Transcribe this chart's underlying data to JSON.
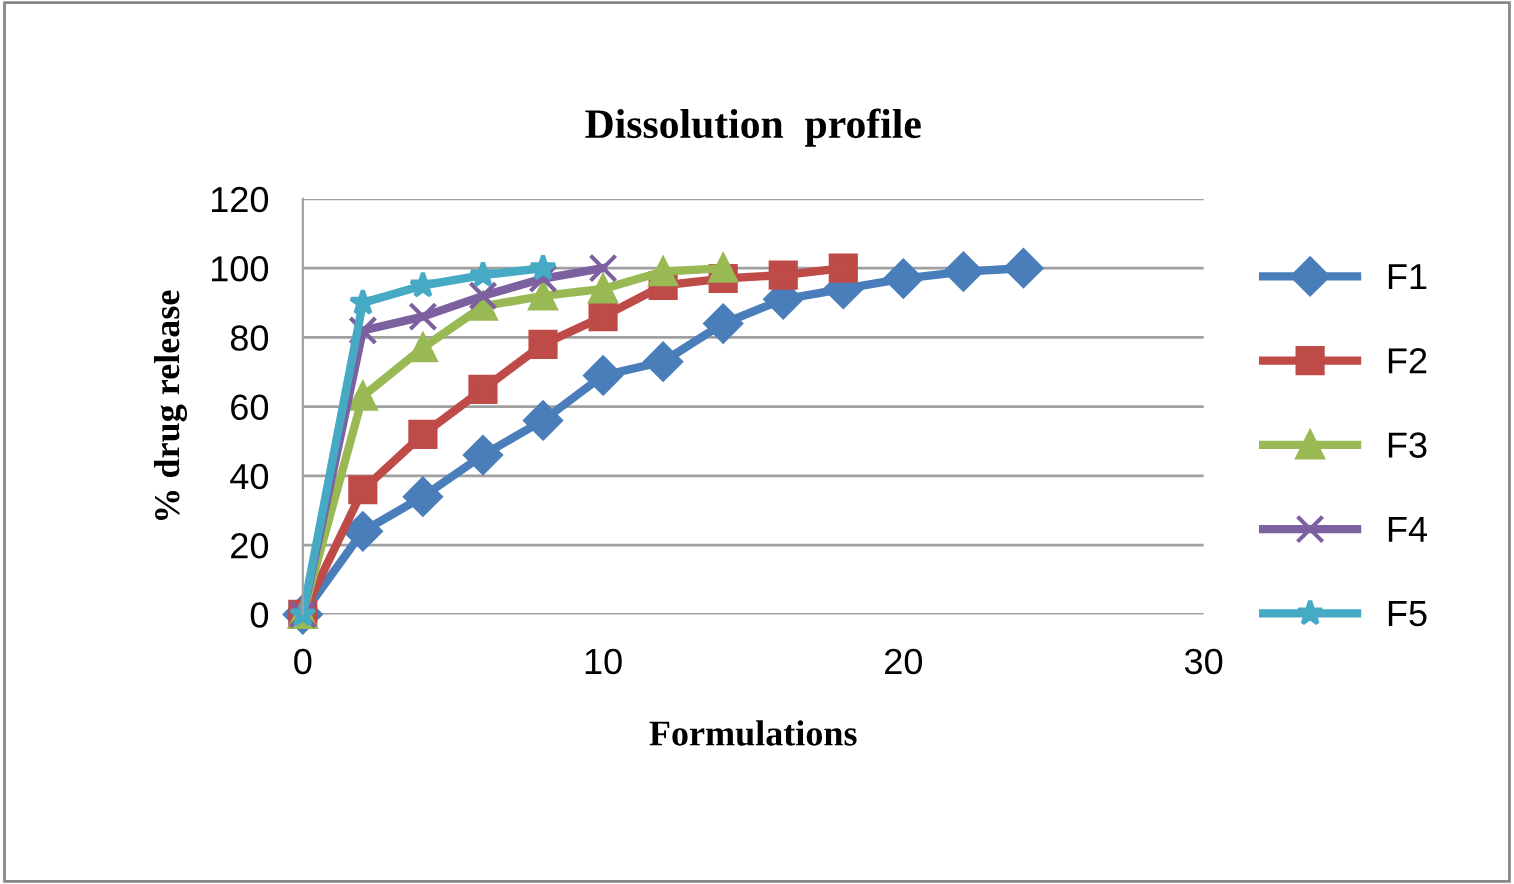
{
  "chart_data": {
    "type": "line",
    "title": "Dissolution  profile",
    "xlabel": "Formulations",
    "ylabel": "% drug release",
    "xlim": [
      0,
      30
    ],
    "xticks": [
      0,
      10,
      20,
      30
    ],
    "ylim": [
      0,
      120
    ],
    "yticks": [
      0,
      20,
      40,
      60,
      80,
      100,
      120
    ],
    "grid": "y",
    "legend": "right",
    "line_style": "solid",
    "series": [
      {
        "name": "F1",
        "color": "#4a7ebb",
        "marker": "diamond",
        "x": [
          0,
          2,
          4,
          6,
          8,
          10,
          12,
          14,
          16,
          18,
          20,
          22,
          24
        ],
        "values": [
          0,
          24,
          34,
          46,
          56,
          69,
          73,
          84,
          91,
          94,
          97,
          99,
          100
        ]
      },
      {
        "name": "F2",
        "color": "#be4b48",
        "marker": "square",
        "x": [
          0,
          2,
          4,
          6,
          8,
          10,
          12,
          14,
          16,
          18
        ],
        "values": [
          0,
          36,
          52,
          65,
          78,
          86,
          95,
          97,
          98,
          100
        ]
      },
      {
        "name": "F3",
        "color": "#98b954",
        "marker": "triangle",
        "x": [
          0,
          2,
          4,
          6,
          8,
          10,
          12,
          14
        ],
        "values": [
          0,
          63,
          77,
          89,
          92,
          94,
          99,
          100
        ]
      },
      {
        "name": "F4",
        "color": "#7d60a0",
        "marker": "cross",
        "x": [
          0,
          2,
          4,
          6,
          8,
          10
        ],
        "values": [
          0,
          82,
          86,
          92,
          97,
          100
        ]
      },
      {
        "name": "F5",
        "color": "#46aac5",
        "marker": "star",
        "x": [
          0,
          2,
          4,
          6,
          8
        ],
        "values": [
          0,
          90,
          95,
          98,
          100
        ]
      }
    ]
  }
}
